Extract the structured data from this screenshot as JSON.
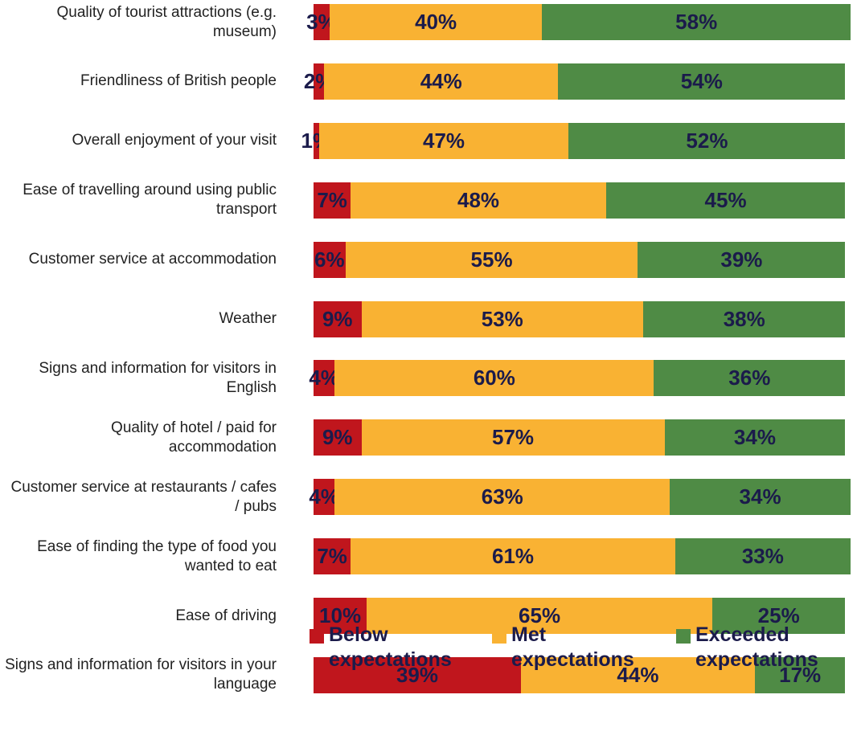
{
  "chart_data": {
    "type": "bar",
    "orientation": "horizontal",
    "stacked": true,
    "categories": [
      "Quality of tourist attractions (e.g. museum)",
      "Friendliness of British people",
      "Overall enjoyment of your visit",
      "Ease of travelling around using public transport",
      "Customer service at accommodation",
      "Weather",
      "Signs and information for visitors in English",
      "Quality of hotel / paid for accommodation",
      "Customer service at restaurants / cafes / pubs",
      "Ease of finding the type of food you wanted to eat",
      "Ease of driving",
      "Signs and information for visitors in your language"
    ],
    "series": [
      {
        "name": "Below expectations",
        "color": "#c0161d",
        "values": [
          3,
          2,
          1,
          7,
          6,
          9,
          4,
          9,
          4,
          7,
          10,
          39
        ],
        "value_labels": [
          "3%",
          "2%",
          "1%",
          "7%",
          "6%",
          "9%",
          "4%",
          "9%",
          "4%",
          "7%",
          "10%",
          "39%"
        ]
      },
      {
        "name": "Met expectations",
        "color": "#f9b233",
        "values": [
          40,
          44,
          47,
          48,
          55,
          53,
          60,
          57,
          63,
          61,
          65,
          44
        ],
        "value_labels": [
          "40%",
          "44%",
          "47%",
          "48%",
          "55%",
          "53%",
          "60%",
          "57%",
          "63%",
          "61%",
          "65%",
          "44%"
        ]
      },
      {
        "name": "Exceeded expectations",
        "color": "#4f8b45",
        "values": [
          58,
          54,
          52,
          45,
          39,
          38,
          36,
          34,
          34,
          33,
          25,
          17
        ],
        "value_labels": [
          "58%",
          "54%",
          "52%",
          "45%",
          "39%",
          "38%",
          "36%",
          "34%",
          "34%",
          "33%",
          "25%",
          "17%"
        ]
      }
    ]
  }
}
